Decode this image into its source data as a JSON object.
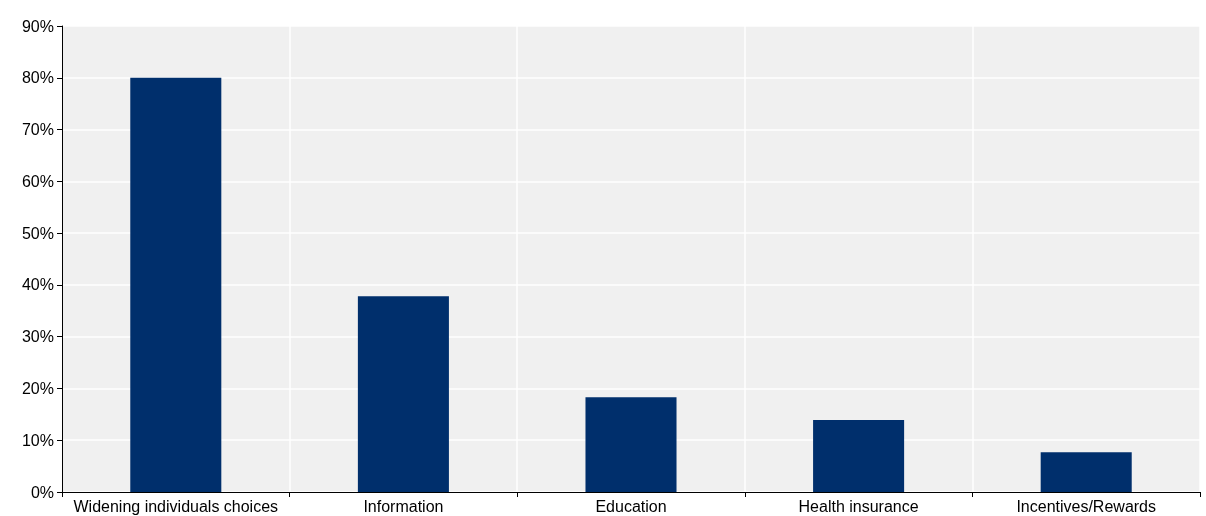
{
  "chart_data": {
    "type": "bar",
    "categories": [
      "Widening individuals choices",
      "Information",
      "Education",
      "Health insurance",
      "Incentives/Rewards"
    ],
    "values": [
      80,
      37.8,
      18.3,
      13.9,
      7.7
    ],
    "color": "#002f6c",
    "ylim": [
      0,
      90
    ],
    "yticks": [
      {
        "value": 0,
        "label": "0%"
      },
      {
        "value": 10,
        "label": "10%"
      },
      {
        "value": 20,
        "label": "20%"
      },
      {
        "value": 30,
        "label": "30%"
      },
      {
        "value": 40,
        "label": "40%"
      },
      {
        "value": 50,
        "label": "50%"
      },
      {
        "value": 60,
        "label": "60%"
      },
      {
        "value": 70,
        "label": "70%"
      },
      {
        "value": 80,
        "label": "80%"
      },
      {
        "value": 90,
        "label": "90%"
      }
    ],
    "grid": true
  }
}
